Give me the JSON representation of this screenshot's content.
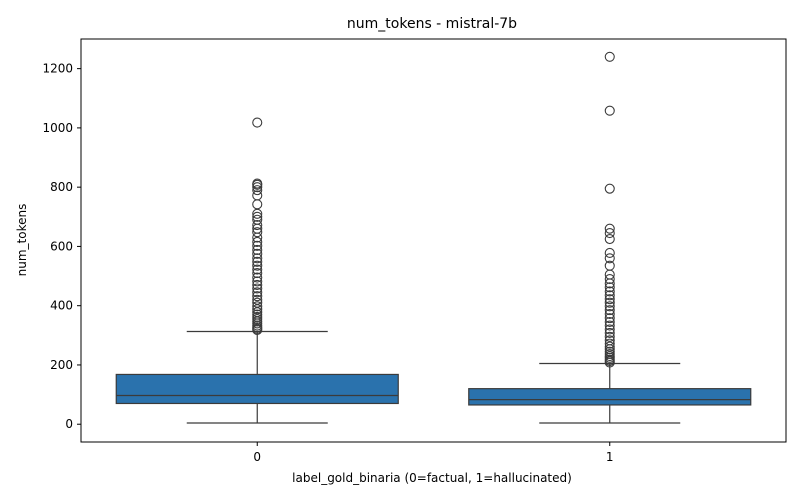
{
  "chart_data": {
    "type": "box",
    "title": "num_tokens - mistral-7b",
    "xlabel": "label_gold_binaria (0=factual, 1=hallucinated)",
    "ylabel": "num_tokens",
    "categories": [
      "0",
      "1"
    ],
    "ylim": [
      -60,
      1300
    ],
    "yticks": [
      0,
      200,
      400,
      600,
      800,
      1000,
      1200
    ],
    "grid": false,
    "box_color": "#2a72ad",
    "boxes": [
      {
        "category": "0",
        "whisker_low": 4,
        "q1": 70,
        "median": 97,
        "q3": 168,
        "whisker_high": 313,
        "outliers": [
          318,
          322,
          327,
          333,
          340,
          347,
          355,
          362,
          370,
          378,
          388,
          398,
          410,
          420,
          432,
          445,
          458,
          470,
          482,
          495,
          510,
          522,
          535,
          548,
          560,
          575,
          588,
          602,
          615,
          630,
          648,
          660,
          672,
          690,
          700,
          710,
          742,
          772,
          790,
          800,
          808,
          812,
          1018
        ]
      },
      {
        "category": "1",
        "whisker_low": 4,
        "q1": 65,
        "median": 83,
        "q3": 120,
        "whisker_high": 205,
        "outliers": [
          208,
          213,
          218,
          224,
          230,
          237,
          245,
          253,
          262,
          272,
          283,
          295,
          308,
          320,
          333,
          345,
          358,
          372,
          385,
          398,
          410,
          422,
          435,
          448,
          462,
          475,
          490,
          505,
          535,
          560,
          578,
          625,
          645,
          660,
          795,
          1058,
          1240
        ]
      }
    ]
  }
}
